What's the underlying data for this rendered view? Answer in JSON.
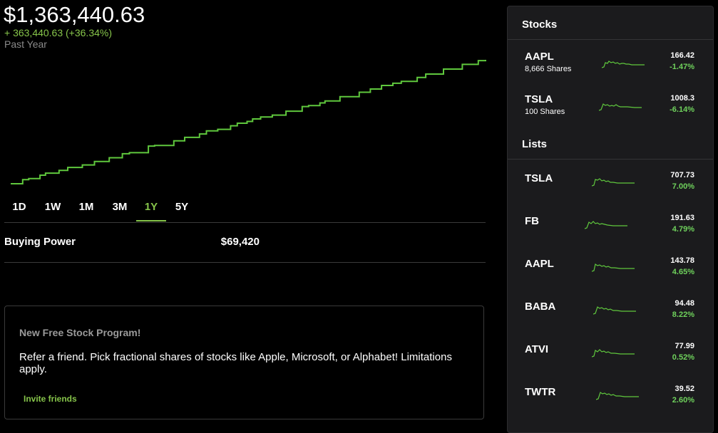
{
  "portfolio": {
    "balance": "$1,363,440.63",
    "change": "+ 363,440.63 (+36.34%)",
    "period": "Past Year",
    "accent_color": "#86c44a"
  },
  "ranges": [
    "1D",
    "1W",
    "1M",
    "3M",
    "1Y",
    "5Y"
  ],
  "active_range": "1Y",
  "buying_power": {
    "label": "Buying Power",
    "value": "$69,420"
  },
  "promo": {
    "title": "New Free Stock Program!",
    "body": "Refer a friend. Pick fractional shares of stocks like Apple, Microsoft, or Alphabet! Limitations apply.",
    "link": "Invite friends"
  },
  "sidebar": {
    "stocks_title": "Stocks",
    "stocks": [
      {
        "symbol": "AAPL",
        "shares": "8,666 Shares",
        "price": "166.42",
        "change": "-1.47%"
      },
      {
        "symbol": "TSLA",
        "shares": "100 Shares",
        "price": "1008.3",
        "change": "-6.14%"
      }
    ],
    "lists_title": "Lists",
    "lists": [
      {
        "symbol": "TSLA",
        "price": "707.73",
        "change": "7.00%"
      },
      {
        "symbol": "FB",
        "price": "191.63",
        "change": "4.79%"
      },
      {
        "symbol": "AAPL",
        "price": "143.78",
        "change": "4.65%"
      },
      {
        "symbol": "BABA",
        "price": "94.48",
        "change": "8.22%"
      },
      {
        "symbol": "ATVI",
        "price": "77.99",
        "change": "0.52%"
      },
      {
        "symbol": "TWTR",
        "price": "39.52",
        "change": "2.60%"
      }
    ]
  }
}
